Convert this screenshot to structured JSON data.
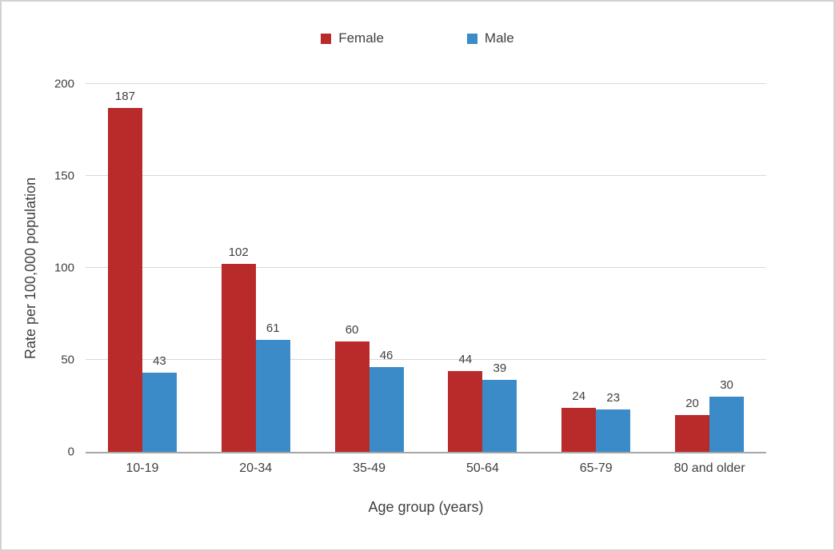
{
  "chart_data": {
    "type": "bar",
    "title": "",
    "categories": [
      "10-19",
      "20-34",
      "35-49",
      "50-64",
      "65-79",
      "80 and older"
    ],
    "series": [
      {
        "name": "Female",
        "color": "#b92a2a",
        "values": [
          187,
          102,
          60,
          44,
          24,
          20
        ]
      },
      {
        "name": "Male",
        "color": "#3a8bc7",
        "values": [
          43,
          61,
          46,
          39,
          23,
          30
        ]
      }
    ],
    "xlabel": "Age group (years)",
    "ylabel": "Rate per 100,000 population",
    "ylim": [
      0,
      200
    ],
    "yticks": [
      0,
      50,
      100,
      150,
      200
    ],
    "grid": true,
    "legend_position": "top"
  },
  "colors": {
    "grid": "#d9d9d9",
    "axis": "#a6a6a6",
    "text": "#404040",
    "background": "#ffffff"
  }
}
